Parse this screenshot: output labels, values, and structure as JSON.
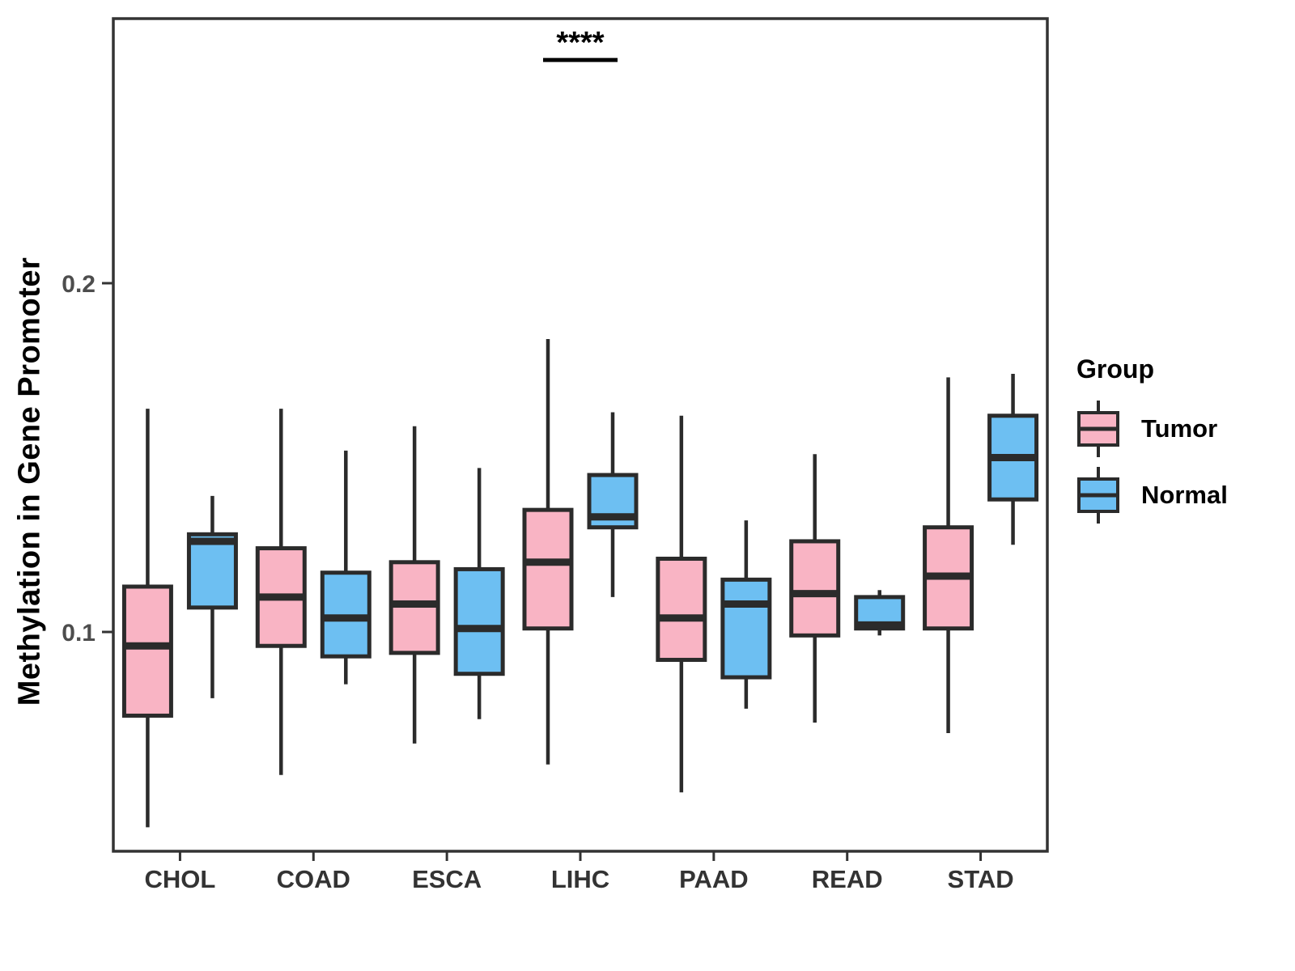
{
  "chart_data": {
    "type": "boxplot",
    "title": "",
    "xlabel": "",
    "ylabel": "Methylation in Gene Promoter",
    "categories": [
      "CHOL",
      "COAD",
      "ESCA",
      "LIHC",
      "PAAD",
      "READ",
      "STAD"
    ],
    "series": [
      {
        "name": "Tumor",
        "color": "#F9B4C4",
        "boxes": [
          {
            "category": "CHOL",
            "whisker_low": 0.044,
            "q1": 0.076,
            "median": 0.096,
            "q3": 0.113,
            "whisker_high": 0.164
          },
          {
            "category": "COAD",
            "whisker_low": 0.059,
            "q1": 0.096,
            "median": 0.11,
            "q3": 0.124,
            "whisker_high": 0.164
          },
          {
            "category": "ESCA",
            "whisker_low": 0.068,
            "q1": 0.094,
            "median": 0.108,
            "q3": 0.12,
            "whisker_high": 0.159
          },
          {
            "category": "LIHC",
            "whisker_low": 0.062,
            "q1": 0.101,
            "median": 0.12,
            "q3": 0.135,
            "whisker_high": 0.184
          },
          {
            "category": "PAAD",
            "whisker_low": 0.054,
            "q1": 0.092,
            "median": 0.104,
            "q3": 0.121,
            "whisker_high": 0.162
          },
          {
            "category": "READ",
            "whisker_low": 0.074,
            "q1": 0.099,
            "median": 0.111,
            "q3": 0.126,
            "whisker_high": 0.151
          },
          {
            "category": "STAD",
            "whisker_low": 0.071,
            "q1": 0.101,
            "median": 0.116,
            "q3": 0.13,
            "whisker_high": 0.173
          }
        ]
      },
      {
        "name": "Normal",
        "color": "#6DBFF2",
        "boxes": [
          {
            "category": "CHOL",
            "whisker_low": 0.081,
            "q1": 0.107,
            "median": 0.126,
            "q3": 0.128,
            "whisker_high": 0.139
          },
          {
            "category": "COAD",
            "whisker_low": 0.085,
            "q1": 0.093,
            "median": 0.104,
            "q3": 0.117,
            "whisker_high": 0.152
          },
          {
            "category": "ESCA",
            "whisker_low": 0.075,
            "q1": 0.088,
            "median": 0.101,
            "q3": 0.118,
            "whisker_high": 0.147
          },
          {
            "category": "LIHC",
            "whisker_low": 0.11,
            "q1": 0.13,
            "median": 0.133,
            "q3": 0.145,
            "whisker_high": 0.163
          },
          {
            "category": "PAAD",
            "whisker_low": 0.078,
            "q1": 0.087,
            "median": 0.108,
            "q3": 0.115,
            "whisker_high": 0.132
          },
          {
            "category": "READ",
            "whisker_low": 0.099,
            "q1": 0.101,
            "median": 0.102,
            "q3": 0.11,
            "whisker_high": 0.112
          },
          {
            "category": "STAD",
            "whisker_low": 0.125,
            "q1": 0.138,
            "median": 0.15,
            "q3": 0.162,
            "whisker_high": 0.174
          }
        ]
      }
    ],
    "yticks": [
      {
        "value": 0.1,
        "label": "0.1"
      },
      {
        "value": 0.2,
        "label": "0.2"
      }
    ],
    "ylim": [
      0.037,
      0.276
    ],
    "legend": {
      "title": "Group",
      "position": "right"
    },
    "annotations": [
      {
        "type": "significance",
        "label": "****",
        "category": "LIHC",
        "y": 0.264
      }
    ],
    "styles": {
      "box_stroke": "#2B2B2B",
      "axis_color": "#333333",
      "tick_label_color": "#4D4D4D",
      "text_color": "#000000",
      "grid": false,
      "background": "#FFFFFF"
    }
  }
}
